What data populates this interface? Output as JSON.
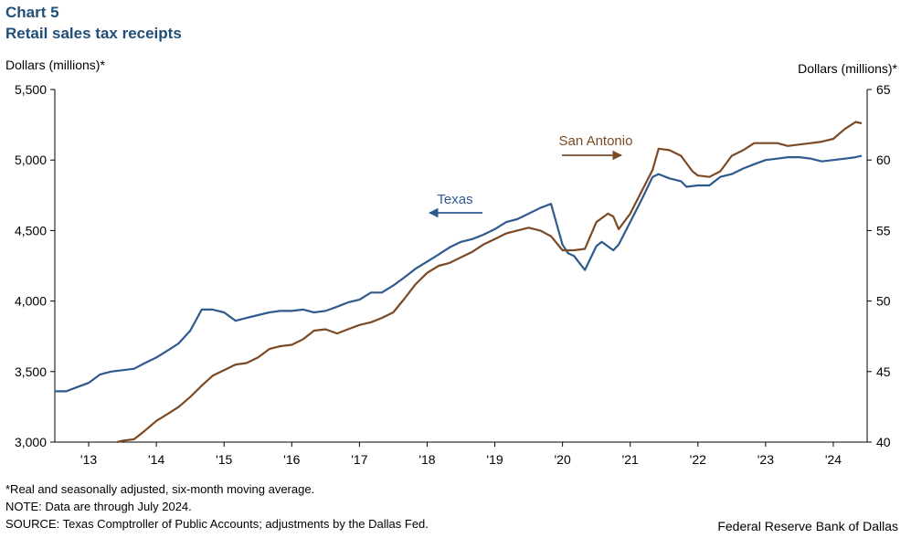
{
  "header": {
    "chart_number": "Chart 5",
    "title": "Retail sales tax receipts"
  },
  "footer": {
    "note1": "*Real and seasonally adjusted, six-month moving average.",
    "note2": "NOTE: Data are through July 2024.",
    "source": "SOURCE: Texas Comptroller of Public Accounts; adjustments by the Dallas Fed.",
    "credit": "Federal Reserve Bank of Dallas"
  },
  "chart_data": {
    "type": "line",
    "title": "Retail sales tax receipts",
    "xlabel": "",
    "ylabel_left": "Dollars (millions)*",
    "ylabel_right": "Dollars (millions)*",
    "ylim_left": [
      3000,
      5500
    ],
    "ylim_right": [
      40,
      65
    ],
    "yticks_left": [
      "3,000",
      "3,500",
      "4,000",
      "4,500",
      "5,000",
      "5,500"
    ],
    "yticks_right": [
      "40",
      "45",
      "50",
      "55",
      "60",
      "65"
    ],
    "xticks": [
      "'13",
      "'14",
      "'15",
      "'16",
      "'17",
      "'18",
      "'19",
      "'20",
      "'21",
      "'22",
      "'23",
      "'24"
    ],
    "x_start": 2012.5,
    "x_end": 2024.5,
    "grid": false,
    "annotations": [
      {
        "text": "Texas",
        "series": "Texas",
        "arrow": "left"
      },
      {
        "text": "San Antonio",
        "series": "San Antonio",
        "arrow": "right"
      }
    ],
    "series": [
      {
        "name": "Texas",
        "axis": "left",
        "color": "#2e5a8e",
        "points": [
          [
            2012.5,
            3360
          ],
          [
            2012.67,
            3360
          ],
          [
            2012.83,
            3390
          ],
          [
            2013.0,
            3420
          ],
          [
            2013.17,
            3480
          ],
          [
            2013.33,
            3500
          ],
          [
            2013.5,
            3510
          ],
          [
            2013.67,
            3520
          ],
          [
            2013.83,
            3560
          ],
          [
            2014.0,
            3600
          ],
          [
            2014.17,
            3650
          ],
          [
            2014.33,
            3700
          ],
          [
            2014.5,
            3790
          ],
          [
            2014.67,
            3940
          ],
          [
            2014.83,
            3940
          ],
          [
            2015.0,
            3920
          ],
          [
            2015.17,
            3860
          ],
          [
            2015.33,
            3880
          ],
          [
            2015.5,
            3900
          ],
          [
            2015.67,
            3920
          ],
          [
            2015.83,
            3930
          ],
          [
            2016.0,
            3930
          ],
          [
            2016.17,
            3940
          ],
          [
            2016.33,
            3920
          ],
          [
            2016.5,
            3930
          ],
          [
            2016.67,
            3960
          ],
          [
            2016.83,
            3990
          ],
          [
            2017.0,
            4010
          ],
          [
            2017.17,
            4060
          ],
          [
            2017.33,
            4060
          ],
          [
            2017.5,
            4110
          ],
          [
            2017.67,
            4170
          ],
          [
            2017.83,
            4230
          ],
          [
            2018.0,
            4280
          ],
          [
            2018.17,
            4330
          ],
          [
            2018.33,
            4380
          ],
          [
            2018.5,
            4420
          ],
          [
            2018.67,
            4440
          ],
          [
            2018.83,
            4470
          ],
          [
            2019.0,
            4510
          ],
          [
            2019.17,
            4560
          ],
          [
            2019.33,
            4580
          ],
          [
            2019.5,
            4620
          ],
          [
            2019.67,
            4660
          ],
          [
            2019.83,
            4690
          ],
          [
            2020.0,
            4400
          ],
          [
            2020.08,
            4340
          ],
          [
            2020.17,
            4320
          ],
          [
            2020.33,
            4220
          ],
          [
            2020.5,
            4390
          ],
          [
            2020.58,
            4420
          ],
          [
            2020.75,
            4360
          ],
          [
            2020.83,
            4400
          ],
          [
            2021.0,
            4560
          ],
          [
            2021.17,
            4720
          ],
          [
            2021.33,
            4880
          ],
          [
            2021.42,
            4900
          ],
          [
            2021.58,
            4870
          ],
          [
            2021.75,
            4850
          ],
          [
            2021.83,
            4810
          ],
          [
            2022.0,
            4820
          ],
          [
            2022.17,
            4820
          ],
          [
            2022.33,
            4880
          ],
          [
            2022.5,
            4900
          ],
          [
            2022.67,
            4940
          ],
          [
            2022.83,
            4970
          ],
          [
            2023.0,
            5000
          ],
          [
            2023.17,
            5010
          ],
          [
            2023.33,
            5020
          ],
          [
            2023.5,
            5020
          ],
          [
            2023.67,
            5010
          ],
          [
            2023.83,
            4990
          ],
          [
            2024.0,
            5000
          ],
          [
            2024.17,
            5010
          ],
          [
            2024.33,
            5020
          ],
          [
            2024.42,
            5030
          ]
        ]
      },
      {
        "name": "San Antonio",
        "axis": "right",
        "color": "#7b4a24",
        "points": [
          [
            2013.42,
            40.0
          ],
          [
            2013.5,
            40.1
          ],
          [
            2013.67,
            40.2
          ],
          [
            2013.83,
            40.8
          ],
          [
            2014.0,
            41.5
          ],
          [
            2014.17,
            42.0
          ],
          [
            2014.33,
            42.5
          ],
          [
            2014.5,
            43.2
          ],
          [
            2014.67,
            44.0
          ],
          [
            2014.83,
            44.7
          ],
          [
            2015.0,
            45.1
          ],
          [
            2015.17,
            45.5
          ],
          [
            2015.33,
            45.6
          ],
          [
            2015.5,
            46.0
          ],
          [
            2015.67,
            46.6
          ],
          [
            2015.83,
            46.8
          ],
          [
            2016.0,
            46.9
          ],
          [
            2016.17,
            47.3
          ],
          [
            2016.33,
            47.9
          ],
          [
            2016.5,
            48.0
          ],
          [
            2016.67,
            47.7
          ],
          [
            2016.83,
            48.0
          ],
          [
            2017.0,
            48.3
          ],
          [
            2017.17,
            48.5
          ],
          [
            2017.33,
            48.8
          ],
          [
            2017.5,
            49.2
          ],
          [
            2017.67,
            50.2
          ],
          [
            2017.83,
            51.2
          ],
          [
            2018.0,
            52.0
          ],
          [
            2018.17,
            52.5
          ],
          [
            2018.33,
            52.7
          ],
          [
            2018.5,
            53.1
          ],
          [
            2018.67,
            53.5
          ],
          [
            2018.83,
            54.0
          ],
          [
            2019.0,
            54.4
          ],
          [
            2019.17,
            54.8
          ],
          [
            2019.33,
            55.0
          ],
          [
            2019.5,
            55.2
          ],
          [
            2019.67,
            55.0
          ],
          [
            2019.83,
            54.6
          ],
          [
            2020.0,
            53.6
          ],
          [
            2020.17,
            53.6
          ],
          [
            2020.33,
            53.7
          ],
          [
            2020.5,
            55.6
          ],
          [
            2020.67,
            56.2
          ],
          [
            2020.75,
            56.0
          ],
          [
            2020.83,
            55.1
          ],
          [
            2021.0,
            56.2
          ],
          [
            2021.17,
            57.8
          ],
          [
            2021.33,
            59.3
          ],
          [
            2021.42,
            60.8
          ],
          [
            2021.58,
            60.7
          ],
          [
            2021.75,
            60.3
          ],
          [
            2021.92,
            59.2
          ],
          [
            2022.0,
            58.9
          ],
          [
            2022.17,
            58.8
          ],
          [
            2022.33,
            59.2
          ],
          [
            2022.5,
            60.3
          ],
          [
            2022.67,
            60.7
          ],
          [
            2022.83,
            61.2
          ],
          [
            2023.0,
            61.2
          ],
          [
            2023.17,
            61.2
          ],
          [
            2023.33,
            61.0
          ],
          [
            2023.5,
            61.1
          ],
          [
            2023.67,
            61.2
          ],
          [
            2023.83,
            61.3
          ],
          [
            2024.0,
            61.5
          ],
          [
            2024.17,
            62.2
          ],
          [
            2024.33,
            62.7
          ],
          [
            2024.42,
            62.6
          ]
        ]
      }
    ]
  }
}
